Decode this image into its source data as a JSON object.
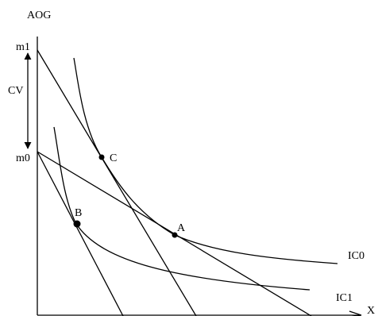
{
  "diagram": {
    "axis_y_label": "AOG",
    "axis_x_label": "X",
    "label_m1": "m1",
    "label_m0": "m0",
    "label_cv": "CV",
    "point_a": "A",
    "point_b": "B",
    "point_c": "C",
    "curve_ic0": "IC0",
    "curve_ic1": "IC1",
    "line_color": "#000000",
    "background_color": "#ffffff"
  }
}
